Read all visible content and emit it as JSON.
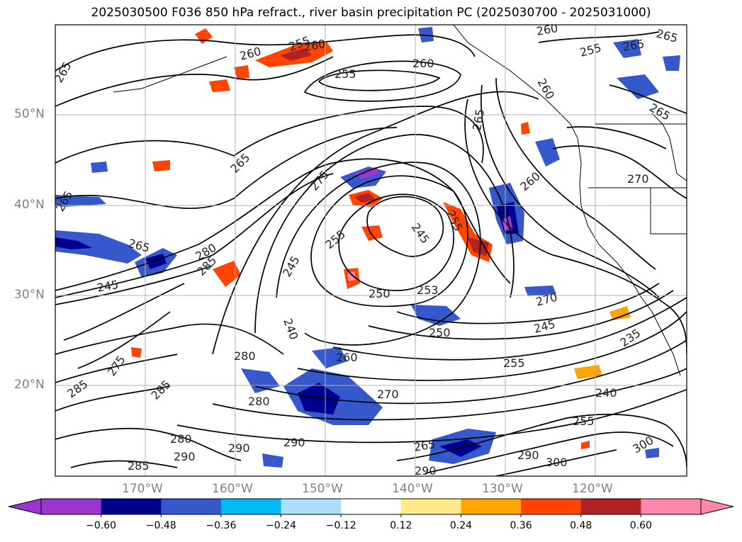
{
  "title": "2025030500 F036 850 hPa refract., river basin precipitation PC (2025030700 - 2025031000)",
  "map": {
    "lat_labels": [
      "50°N",
      "40°N",
      "30°N",
      "20°N"
    ],
    "lon_labels": [
      "170°W",
      "160°W",
      "150°W",
      "140°W",
      "130°W",
      "120°W"
    ],
    "contour_labels": [
      "265",
      "260",
      "255",
      "260",
      "260",
      "265",
      "255",
      "265",
      "260",
      "265",
      "255",
      "260",
      "270",
      "265",
      "275",
      "245",
      "265",
      "260",
      "265",
      "280",
      "285",
      "255",
      "245",
      "240",
      "255",
      "250",
      "253",
      "270",
      "245",
      "265",
      "280",
      "250",
      "235",
      "260",
      "255",
      "270",
      "285",
      "275",
      "245",
      "240",
      "285",
      "280",
      "255",
      "280",
      "290",
      "290",
      "300",
      "290",
      "265",
      "290",
      "285",
      "300",
      "290"
    ]
  },
  "colorbar": {
    "ticks": [
      "−0.60",
      "−0.48",
      "−0.36",
      "−0.24",
      "−0.12",
      "0.12",
      "0.24",
      "0.36",
      "0.48",
      "0.60"
    ],
    "colors": [
      "#9a35d0",
      "#000090",
      "#3558cc",
      "#00b8f5",
      "#aadfff",
      "#ffffff",
      "#ffe98a",
      "#ffa500",
      "#ff4500",
      "#b22222",
      "#ff88aa",
      "#ff88aa"
    ],
    "under_color": "#9a35d0",
    "over_color": "#ff88aa"
  },
  "palette": {
    "contour": "#000000",
    "grid": "#b0b0b0",
    "coast": "#000000"
  }
}
